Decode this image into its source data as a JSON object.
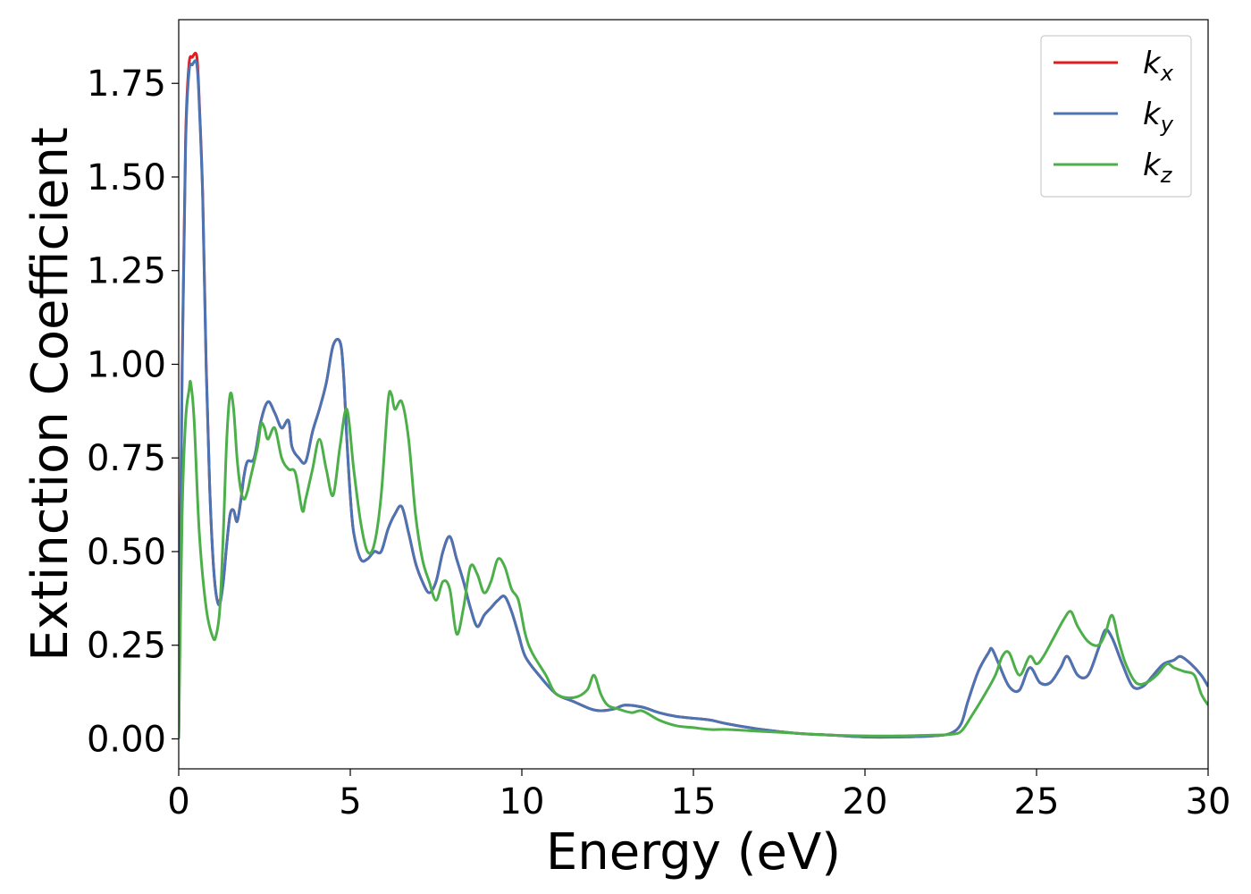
{
  "chart_data": {
    "type": "line",
    "xlabel": "Energy (eV)",
    "ylabel": "Extinction Coefficient",
    "xlim": [
      0,
      30
    ],
    "ylim": [
      -0.08,
      1.92
    ],
    "xticks": [
      0,
      5,
      10,
      15,
      20,
      25,
      30
    ],
    "yticks": [
      0.0,
      0.25,
      0.5,
      0.75,
      1.0,
      1.25,
      1.5,
      1.75
    ],
    "grid": false,
    "legend": "top-right",
    "series": [
      {
        "name": "k_x",
        "base": "k",
        "sub": "x",
        "color": "#e41a1c",
        "x": [
          0,
          0.1,
          0.2,
          0.3,
          0.4,
          0.5,
          0.55,
          0.6,
          0.7,
          0.8,
          0.9,
          1.0,
          1.1,
          1.2,
          1.3,
          1.4,
          1.5,
          1.6,
          1.7,
          1.8,
          1.9,
          2.0,
          2.2,
          2.4,
          2.6,
          2.8,
          3.0,
          3.2,
          3.3,
          3.5,
          3.7,
          3.9,
          4.1,
          4.3,
          4.5,
          4.7,
          4.8,
          4.9,
          5.0,
          5.1,
          5.3,
          5.5,
          5.7,
          5.9,
          6.1,
          6.3,
          6.5,
          6.7,
          6.9,
          7.1,
          7.3,
          7.5,
          7.7,
          7.9,
          8.1,
          8.3,
          8.5,
          8.7,
          8.9,
          9.1,
          9.3,
          9.5,
          9.7,
          9.9,
          10.1,
          10.5,
          11.0,
          11.5,
          12.0,
          12.3,
          12.7,
          13.0,
          13.5,
          14.0,
          14.5,
          15.0,
          15.5,
          16.0,
          17.0,
          18.0,
          19.0,
          20.0,
          21.0,
          22.0,
          22.5,
          22.8,
          23.0,
          23.3,
          23.6,
          23.7,
          23.9,
          24.2,
          24.5,
          24.8,
          25.1,
          25.4,
          25.7,
          25.9,
          26.2,
          26.5,
          26.8,
          27.0,
          27.2,
          27.5,
          27.8,
          28.1,
          28.4,
          28.7,
          29.0,
          29.2,
          29.5,
          29.8,
          30.0
        ],
        "y": [
          0.0,
          1.0,
          1.6,
          1.8,
          1.82,
          1.83,
          1.8,
          1.7,
          1.45,
          1.0,
          0.68,
          0.48,
          0.38,
          0.37,
          0.42,
          0.52,
          0.6,
          0.61,
          0.58,
          0.63,
          0.7,
          0.74,
          0.75,
          0.85,
          0.9,
          0.87,
          0.83,
          0.85,
          0.78,
          0.75,
          0.74,
          0.82,
          0.88,
          0.95,
          1.05,
          1.06,
          0.98,
          0.8,
          0.65,
          0.55,
          0.48,
          0.48,
          0.5,
          0.5,
          0.56,
          0.6,
          0.62,
          0.55,
          0.47,
          0.42,
          0.39,
          0.42,
          0.5,
          0.54,
          0.48,
          0.42,
          0.35,
          0.3,
          0.33,
          0.35,
          0.37,
          0.38,
          0.34,
          0.28,
          0.22,
          0.17,
          0.12,
          0.1,
          0.08,
          0.075,
          0.08,
          0.09,
          0.085,
          0.07,
          0.06,
          0.055,
          0.05,
          0.04,
          0.025,
          0.015,
          0.01,
          0.005,
          0.005,
          0.008,
          0.015,
          0.04,
          0.1,
          0.18,
          0.23,
          0.24,
          0.2,
          0.14,
          0.13,
          0.19,
          0.15,
          0.15,
          0.19,
          0.22,
          0.17,
          0.17,
          0.24,
          0.29,
          0.27,
          0.2,
          0.14,
          0.14,
          0.17,
          0.2,
          0.21,
          0.22,
          0.2,
          0.17,
          0.14
        ]
      },
      {
        "name": "k_y",
        "base": "k",
        "sub": "y",
        "color": "#4a74b3",
        "x": [
          0,
          0.1,
          0.2,
          0.3,
          0.4,
          0.5,
          0.55,
          0.6,
          0.7,
          0.8,
          0.9,
          1.0,
          1.1,
          1.2,
          1.3,
          1.4,
          1.5,
          1.6,
          1.7,
          1.8,
          1.9,
          2.0,
          2.2,
          2.4,
          2.6,
          2.8,
          3.0,
          3.2,
          3.3,
          3.5,
          3.7,
          3.9,
          4.1,
          4.3,
          4.5,
          4.7,
          4.8,
          4.9,
          5.0,
          5.1,
          5.3,
          5.5,
          5.7,
          5.9,
          6.1,
          6.3,
          6.5,
          6.7,
          6.9,
          7.1,
          7.3,
          7.5,
          7.7,
          7.9,
          8.1,
          8.3,
          8.5,
          8.7,
          8.9,
          9.1,
          9.3,
          9.5,
          9.7,
          9.9,
          10.1,
          10.5,
          11.0,
          11.5,
          12.0,
          12.3,
          12.7,
          13.0,
          13.5,
          14.0,
          14.5,
          15.0,
          15.5,
          16.0,
          17.0,
          18.0,
          19.0,
          20.0,
          21.0,
          22.0,
          22.5,
          22.8,
          23.0,
          23.3,
          23.6,
          23.7,
          23.9,
          24.2,
          24.5,
          24.8,
          25.1,
          25.4,
          25.7,
          25.9,
          26.2,
          26.5,
          26.8,
          27.0,
          27.2,
          27.5,
          27.8,
          28.1,
          28.4,
          28.7,
          29.0,
          29.2,
          29.5,
          29.8,
          30.0
        ],
        "y": [
          0.0,
          0.98,
          1.58,
          1.78,
          1.8,
          1.81,
          1.78,
          1.69,
          1.44,
          0.99,
          0.68,
          0.48,
          0.38,
          0.36,
          0.42,
          0.52,
          0.6,
          0.61,
          0.58,
          0.63,
          0.7,
          0.74,
          0.75,
          0.85,
          0.9,
          0.87,
          0.83,
          0.85,
          0.78,
          0.75,
          0.74,
          0.82,
          0.88,
          0.95,
          1.05,
          1.06,
          0.98,
          0.8,
          0.65,
          0.55,
          0.48,
          0.48,
          0.5,
          0.5,
          0.56,
          0.6,
          0.62,
          0.55,
          0.47,
          0.42,
          0.39,
          0.42,
          0.5,
          0.54,
          0.48,
          0.42,
          0.35,
          0.3,
          0.33,
          0.35,
          0.37,
          0.38,
          0.34,
          0.28,
          0.22,
          0.17,
          0.12,
          0.1,
          0.08,
          0.075,
          0.08,
          0.09,
          0.085,
          0.07,
          0.06,
          0.055,
          0.05,
          0.04,
          0.025,
          0.015,
          0.01,
          0.005,
          0.005,
          0.008,
          0.015,
          0.04,
          0.1,
          0.18,
          0.23,
          0.24,
          0.2,
          0.14,
          0.13,
          0.19,
          0.15,
          0.15,
          0.19,
          0.22,
          0.17,
          0.17,
          0.24,
          0.29,
          0.27,
          0.2,
          0.14,
          0.14,
          0.17,
          0.2,
          0.21,
          0.22,
          0.2,
          0.17,
          0.14
        ]
      },
      {
        "name": "k_z",
        "base": "k",
        "sub": "z",
        "color": "#4daf4a",
        "x": [
          0,
          0.1,
          0.2,
          0.3,
          0.35,
          0.45,
          0.6,
          0.8,
          1.0,
          1.1,
          1.2,
          1.3,
          1.4,
          1.5,
          1.6,
          1.7,
          1.8,
          1.9,
          2.0,
          2.1,
          2.3,
          2.4,
          2.5,
          2.6,
          2.8,
          3.0,
          3.2,
          3.4,
          3.6,
          3.7,
          3.9,
          4.1,
          4.3,
          4.5,
          4.7,
          4.9,
          5.1,
          5.3,
          5.5,
          5.7,
          5.9,
          6.1,
          6.2,
          6.3,
          6.5,
          6.7,
          6.9,
          7.1,
          7.3,
          7.5,
          7.7,
          7.9,
          8.1,
          8.3,
          8.5,
          8.7,
          8.9,
          9.1,
          9.3,
          9.5,
          9.7,
          9.9,
          10.1,
          10.3,
          10.7,
          11.0,
          11.5,
          11.9,
          12.1,
          12.3,
          12.5,
          12.8,
          13.2,
          13.5,
          14.0,
          14.5,
          15.0,
          15.5,
          16.0,
          17.0,
          18.0,
          19.0,
          20.0,
          21.0,
          22.0,
          22.5,
          22.8,
          23.1,
          23.5,
          23.8,
          24.0,
          24.2,
          24.5,
          24.8,
          25.0,
          25.2,
          25.5,
          25.8,
          26.0,
          26.2,
          26.5,
          26.8,
          27.0,
          27.2,
          27.4,
          27.6,
          27.9,
          28.2,
          28.5,
          28.8,
          29.0,
          29.3,
          29.6,
          29.8,
          30.0
        ],
        "y": [
          0.0,
          0.6,
          0.85,
          0.93,
          0.95,
          0.85,
          0.55,
          0.35,
          0.27,
          0.28,
          0.35,
          0.55,
          0.8,
          0.92,
          0.88,
          0.75,
          0.67,
          0.64,
          0.66,
          0.7,
          0.78,
          0.84,
          0.83,
          0.8,
          0.83,
          0.75,
          0.72,
          0.71,
          0.61,
          0.64,
          0.72,
          0.8,
          0.72,
          0.65,
          0.78,
          0.88,
          0.72,
          0.58,
          0.5,
          0.52,
          0.65,
          0.9,
          0.92,
          0.88,
          0.9,
          0.8,
          0.6,
          0.48,
          0.42,
          0.37,
          0.42,
          0.4,
          0.28,
          0.35,
          0.46,
          0.44,
          0.39,
          0.42,
          0.48,
          0.46,
          0.4,
          0.37,
          0.28,
          0.23,
          0.17,
          0.12,
          0.11,
          0.13,
          0.17,
          0.12,
          0.09,
          0.08,
          0.07,
          0.075,
          0.05,
          0.035,
          0.03,
          0.025,
          0.025,
          0.02,
          0.015,
          0.01,
          0.008,
          0.008,
          0.01,
          0.012,
          0.02,
          0.06,
          0.12,
          0.17,
          0.22,
          0.23,
          0.17,
          0.22,
          0.2,
          0.22,
          0.27,
          0.32,
          0.34,
          0.3,
          0.26,
          0.25,
          0.28,
          0.33,
          0.26,
          0.2,
          0.15,
          0.15,
          0.17,
          0.2,
          0.19,
          0.18,
          0.17,
          0.12,
          0.09
        ]
      }
    ]
  }
}
